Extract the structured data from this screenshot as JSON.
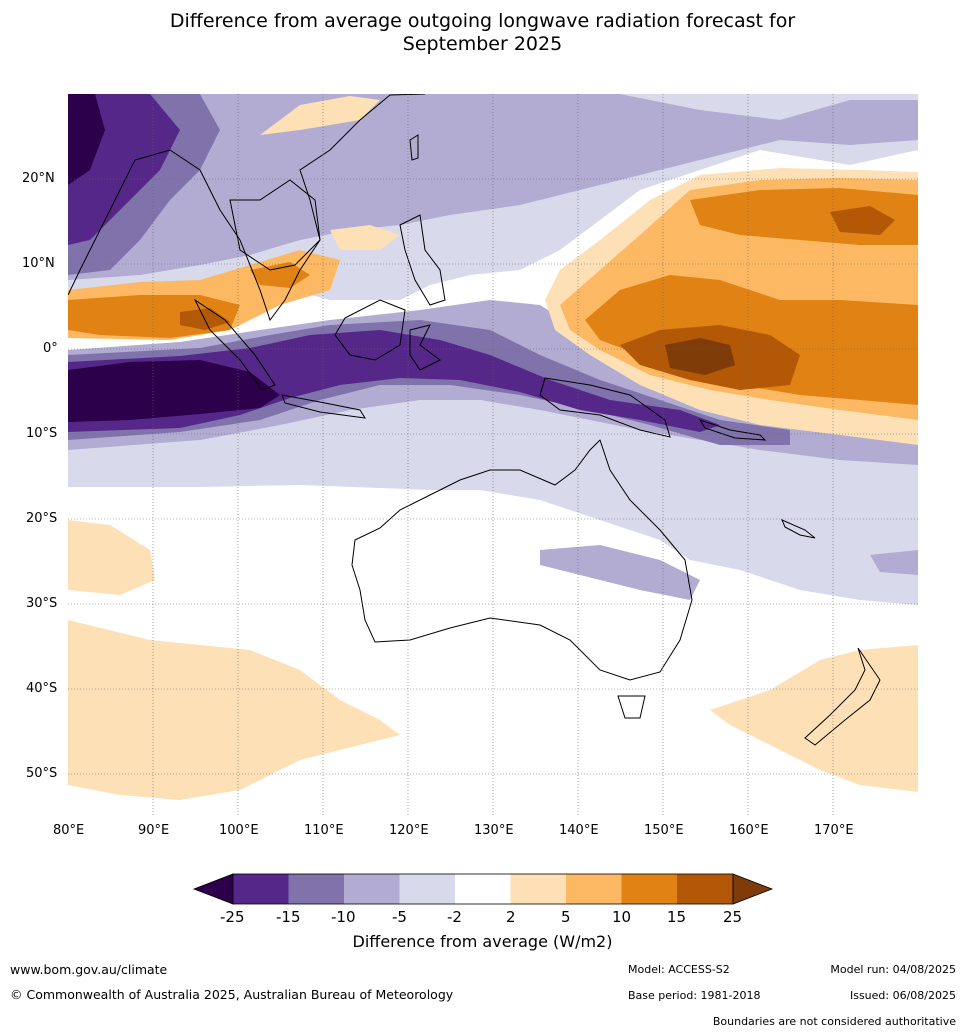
{
  "title_line1": "Difference from average outgoing longwave radiation forecast for",
  "title_line2": "September 2025",
  "axes": {
    "lon_labels": [
      "80°E",
      "90°E",
      "100°E",
      "110°E",
      "120°E",
      "130°E",
      "140°E",
      "150°E",
      "160°E",
      "170°E"
    ],
    "lat_labels": [
      "20°N",
      "10°N",
      "0°",
      "10°S",
      "20°S",
      "30°S",
      "40°S",
      "50°S"
    ],
    "lon_range": [
      80,
      180
    ],
    "lat_range": [
      -55,
      30
    ]
  },
  "legend": {
    "title": "Difference from average (W/m2)",
    "tick_labels": [
      "-25",
      "-15",
      "-10",
      "-5",
      "-2",
      "2",
      "5",
      "10",
      "15",
      "25"
    ],
    "colors": [
      "#2d004b",
      "#542788",
      "#8073ac",
      "#b2abd2",
      "#d8daeb",
      "#ffffff",
      "#fee0b6",
      "#fdb863",
      "#e08214",
      "#b35806",
      "#7f3b08"
    ]
  },
  "footer": {
    "website": "www.bom.gov.au/climate",
    "copyright": "© Commonwealth of Australia 2025, Australian Bureau of Meteorology",
    "model": "Model: ACCESS-S2",
    "base_period": "Base period: 1981-2018",
    "model_run": "Model run: 04/08/2025",
    "issued": "Issued: 06/08/2025",
    "disclaimer": "Boundaries are not considered authoritative"
  }
}
